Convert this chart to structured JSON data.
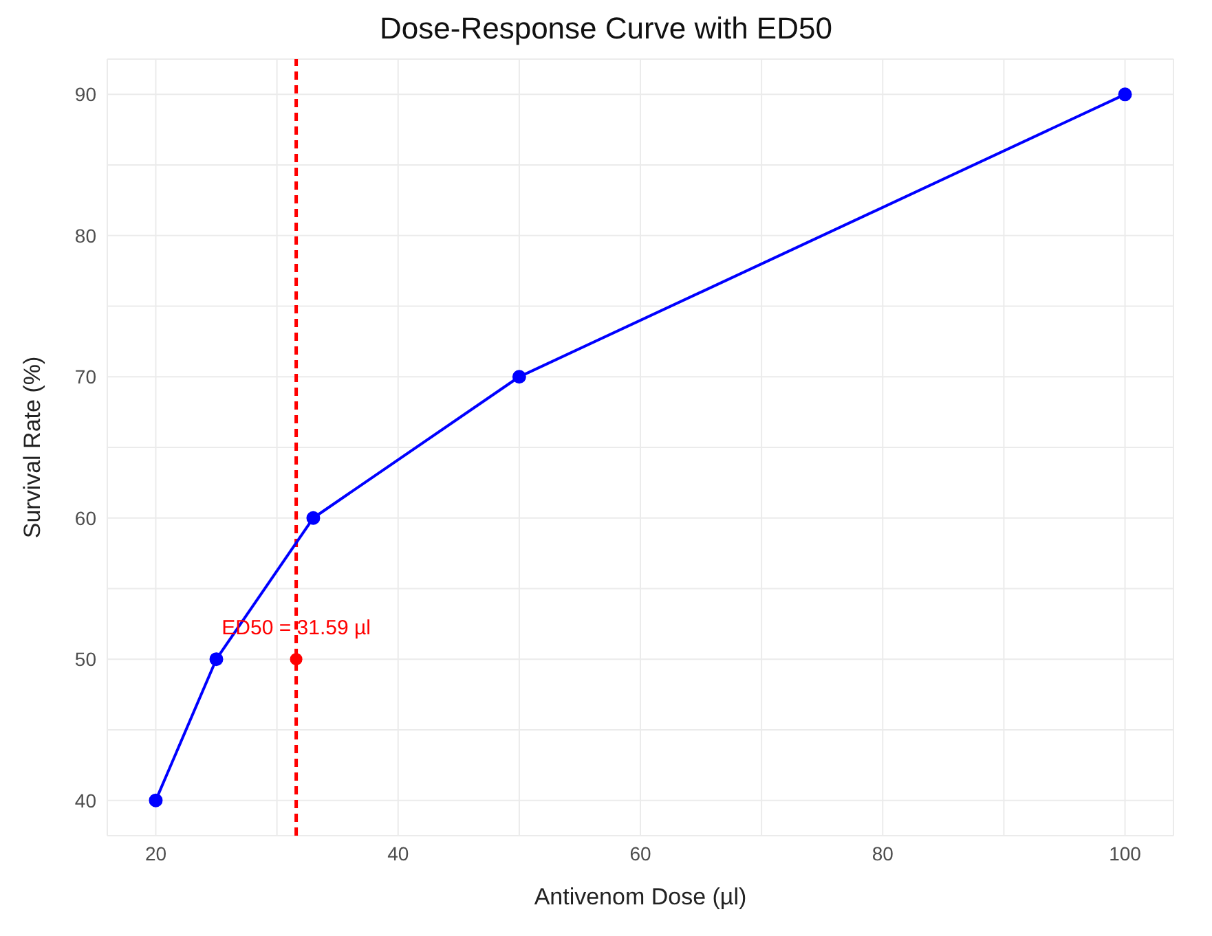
{
  "chart_data": {
    "type": "line",
    "title": "Dose-Response Curve with ED50",
    "xlabel": "Antivenom Dose (µl)",
    "ylabel": "Survival Rate (%)",
    "x": [
      20,
      25,
      33,
      50,
      100
    ],
    "series": [
      {
        "color": "#0000ff",
        "values": [
          40,
          50,
          60,
          70,
          90
        ]
      },
      {
        "type": "scatter",
        "color": "#ff0000",
        "x": [
          31.59
        ],
        "values": [
          50
        ]
      }
    ],
    "xlim": [
      16,
      104
    ],
    "xticks": [
      20,
      {
        "value": 30,
        "label": null
      },
      40,
      {
        "value": 50,
        "label": null
      },
      60,
      {
        "value": 70,
        "label": null
      },
      80,
      {
        "value": 90,
        "label": null
      },
      100
    ],
    "ylim": [
      37.5,
      92.5
    ],
    "yticks": [
      40,
      {
        "value": 45,
        "label": null
      },
      50,
      {
        "value": 55,
        "label": null
      },
      60,
      {
        "value": 65,
        "label": null
      },
      70,
      {
        "value": 75,
        "label": null
      },
      80,
      {
        "value": 85,
        "label": null
      },
      90
    ],
    "ref_lines": [
      {
        "axis": "x",
        "value": 31.59,
        "color": "#ff0000",
        "line_style": "dashed"
      }
    ],
    "annotations": [
      {
        "text": "ED50 = 31.59 µl",
        "x": 31.59,
        "y": 50
      }
    ],
    "grid": true,
    "marker": "circle",
    "line_style": "solid"
  }
}
